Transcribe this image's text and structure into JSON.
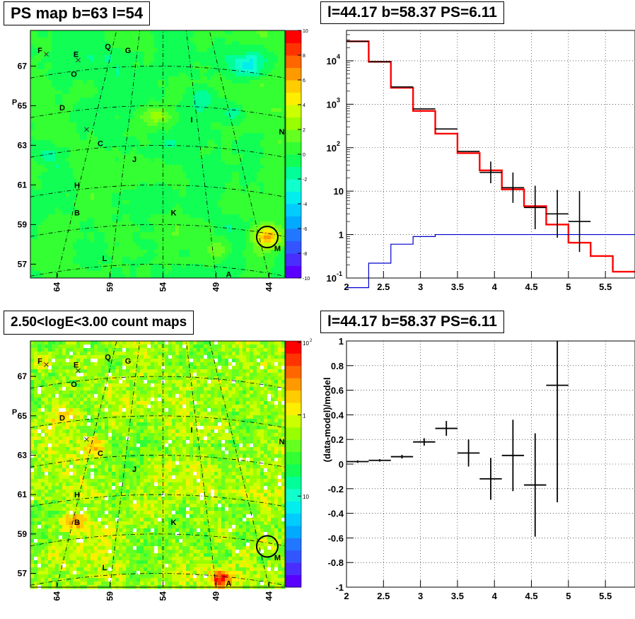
{
  "panels": {
    "ps_map": {
      "title": "PS map b=63 l=54",
      "x_ticks": [
        "64",
        "59",
        "54",
        "49",
        "44"
      ],
      "y_ticks": [
        "67",
        "65",
        "63",
        "61",
        "59",
        "57"
      ],
      "colorbar": {
        "labels": [
          "10",
          "8",
          "6",
          "4",
          "2",
          "0",
          "-2",
          "-4",
          "-6",
          "-8",
          "-10"
        ],
        "range": [
          -10,
          10
        ]
      }
    },
    "count_map": {
      "title": "2.50<logE<3.00 count maps",
      "x_ticks": [
        "64",
        "59",
        "54",
        "49",
        "44"
      ],
      "y_ticks": [
        "67",
        "65",
        "63",
        "61",
        "59",
        "57"
      ],
      "colorbar": {
        "labels": [
          "10",
          "1",
          "10"
        ],
        "exponents": [
          "2",
          "",
          ""
        ],
        "scale": "log"
      }
    },
    "spectrum": {
      "title": "l=44.17 b=58.37 PS=6.11"
    },
    "residual": {
      "title": "l=44.17 b=58.37 PS=6.11"
    }
  },
  "source_labels": [
    {
      "name": "F",
      "l": 65.6,
      "b": 67.8
    },
    {
      "name": "E",
      "l": 62.2,
      "b": 67.6
    },
    {
      "name": "Q",
      "l": 59.2,
      "b": 68.0
    },
    {
      "name": "G",
      "l": 57.3,
      "b": 67.8
    },
    {
      "name": "O",
      "l": 62.4,
      "b": 66.6
    },
    {
      "name": "P",
      "l": 68.0,
      "b": 65.2
    },
    {
      "name": "D",
      "l": 63.5,
      "b": 64.9
    },
    {
      "name": "I",
      "l": 51.3,
      "b": 64.3
    },
    {
      "name": "N",
      "l": 42.8,
      "b": 63.7
    },
    {
      "name": "C",
      "l": 59.9,
      "b": 63.1
    },
    {
      "name": "J",
      "l": 56.7,
      "b": 62.3
    },
    {
      "name": "H",
      "l": 62.1,
      "b": 61.0
    },
    {
      "name": "B",
      "l": 62.1,
      "b": 59.6
    },
    {
      "name": "K",
      "l": 53.0,
      "b": 59.6
    },
    {
      "name": "M",
      "l": 43.2,
      "b": 57.8
    },
    {
      "name": "L",
      "l": 59.5,
      "b": 57.3
    },
    {
      "name": "A",
      "l": 47.8,
      "b": 56.5
    }
  ],
  "crosses": [
    {
      "l": 65.0,
      "b": 67.6
    },
    {
      "l": 62.0,
      "b": 67.3
    },
    {
      "l": 61.2,
      "b": 63.8
    }
  ],
  "roi": {
    "l": 44.17,
    "b": 58.37
  },
  "chart_data": [
    {
      "type": "heatmap",
      "name": "ps_map",
      "xlabel": "",
      "ylabel": "",
      "x_ticks": [
        64,
        59,
        54,
        49,
        44
      ],
      "y_ticks": [
        67,
        65,
        63,
        61,
        59,
        57
      ],
      "z_range": [
        -10,
        10
      ],
      "hotspots": [
        {
          "l": 44.17,
          "b": 58.37,
          "value": 6
        },
        {
          "l": 46.0,
          "b": 67.0,
          "value": -3
        },
        {
          "l": 47.5,
          "b": 64.6,
          "value": -2
        },
        {
          "l": 50.5,
          "b": 65.3,
          "value": -1.5
        },
        {
          "l": 54.5,
          "b": 64.5,
          "value": 2
        },
        {
          "l": 64.5,
          "b": 62.6,
          "value": -1.5
        },
        {
          "l": 48.5,
          "b": 57.8,
          "value": 2
        }
      ]
    },
    {
      "type": "heatmap",
      "name": "count_map",
      "xlabel": "",
      "ylabel": "",
      "x_ticks": [
        64,
        59,
        54,
        49,
        44
      ],
      "y_ticks": [
        67,
        65,
        63,
        61,
        59,
        57
      ],
      "z_scale": "log",
      "z_range": [
        0.1,
        100
      ],
      "hotspots": [
        {
          "l": 48.5,
          "b": 56.7,
          "value": 60
        },
        {
          "l": 62.4,
          "b": 59.6,
          "value": 15
        },
        {
          "l": 63.1,
          "b": 65.0,
          "value": 8
        },
        {
          "l": 65.0,
          "b": 67.8,
          "value": 6
        },
        {
          "l": 60.5,
          "b": 63.5,
          "value": 5
        },
        {
          "l": 44.2,
          "b": 58.4,
          "value": 4
        }
      ]
    },
    {
      "type": "line",
      "name": "spectrum",
      "xlabel": "",
      "ylabel": "",
      "xlim": [
        2,
        5.9
      ],
      "ylim": [
        0.1,
        50000
      ],
      "yscale": "log",
      "x_ticks": [
        "2",
        "2.5",
        "3",
        "3.5",
        "4",
        "4.5",
        "5",
        "5.5"
      ],
      "y_ticks": [
        {
          "label": "10",
          "exp": "-1",
          "value": 0.1
        },
        {
          "label": "1",
          "exp": "",
          "value": 1
        },
        {
          "label": "10",
          "exp": "",
          "value": 10
        },
        {
          "label": "10",
          "exp": "2",
          "value": 100
        },
        {
          "label": "10",
          "exp": "3",
          "value": 1000
        },
        {
          "label": "10",
          "exp": "4",
          "value": 10000
        }
      ],
      "bin_edges": [
        2.0,
        2.3,
        2.6,
        2.9,
        3.2,
        3.5,
        3.8,
        4.1,
        4.4,
        4.7,
        5.0,
        5.3,
        5.6,
        5.9
      ],
      "series": [
        {
          "color": "#ff0000",
          "values": [
            28000,
            9500,
            2400,
            700,
            210,
            75,
            30,
            11,
            4.5,
            1.7,
            0.65,
            0.32,
            0.14
          ]
        },
        {
          "color": "#0000cc",
          "values": [
            0.06,
            0.22,
            0.6,
            0.9,
            1.0,
            1.0,
            1.0,
            1.0,
            1.0,
            1.0,
            1.0,
            1.0,
            1.0
          ]
        }
      ],
      "data_points": [
        {
          "x": 2.15,
          "y": 28000,
          "err": 0
        },
        {
          "x": 2.45,
          "y": 9500,
          "err": 0
        },
        {
          "x": 2.75,
          "y": 2500,
          "err": 0
        },
        {
          "x": 3.05,
          "y": 780,
          "err": 0
        },
        {
          "x": 3.35,
          "y": 270,
          "err": 0
        },
        {
          "x": 3.65,
          "y": 82,
          "err": 0
        },
        {
          "x": 3.95,
          "y": 27,
          "err": 0.25
        },
        {
          "x": 4.25,
          "y": 12,
          "err": 0.35
        },
        {
          "x": 4.55,
          "y": 4.2,
          "err": 0.5
        },
        {
          "x": 4.85,
          "y": 3.0,
          "err": 0.55
        },
        {
          "x": 5.15,
          "y": 2.0,
          "err": 0.7
        }
      ]
    },
    {
      "type": "scatter",
      "name": "residual",
      "xlabel": "",
      "ylabel": "(data-model)/model",
      "xlim": [
        2,
        5.9
      ],
      "ylim": [
        -1,
        1
      ],
      "x_ticks": [
        "2",
        "2.5",
        "3",
        "3.5",
        "4",
        "4.5",
        "5",
        "5.5"
      ],
      "y_ticks": [
        "1",
        "0.8",
        "0.6",
        "0.4",
        "0.2",
        "0",
        "-0.2",
        "-0.4",
        "-0.6",
        "-0.8",
        "-1"
      ],
      "points": [
        {
          "x": 2.15,
          "y": 0.02,
          "err": 0.01
        },
        {
          "x": 2.45,
          "y": 0.03,
          "err": 0.01
        },
        {
          "x": 2.75,
          "y": 0.06,
          "err": 0.015
        },
        {
          "x": 3.05,
          "y": 0.18,
          "err": 0.03
        },
        {
          "x": 3.35,
          "y": 0.29,
          "err": 0.06
        },
        {
          "x": 3.65,
          "y": 0.09,
          "err": 0.11
        },
        {
          "x": 3.95,
          "y": -0.12,
          "err": 0.17
        },
        {
          "x": 4.25,
          "y": 0.07,
          "err": 0.29
        },
        {
          "x": 4.55,
          "y": -0.17,
          "err": 0.42
        },
        {
          "x": 4.85,
          "y": 0.64,
          "err": 0.95
        }
      ]
    }
  ]
}
